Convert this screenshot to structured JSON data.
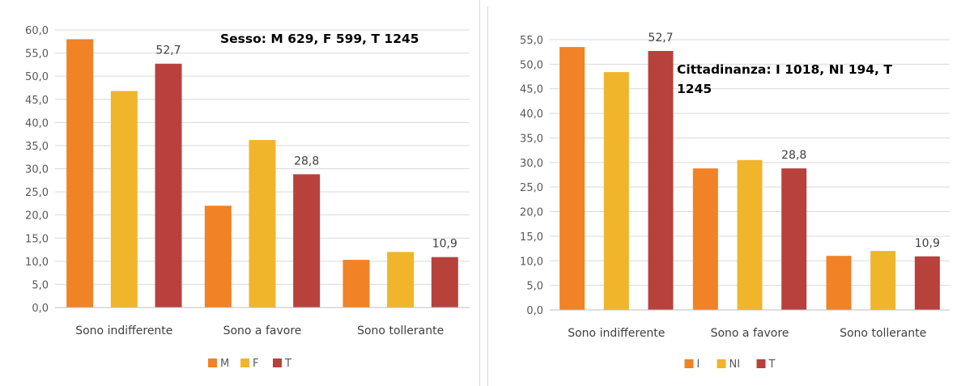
{
  "chart_data": [
    {
      "type": "bar",
      "title_lines": [
        "Sesso: M 629, F 599, T 1245"
      ],
      "categories": [
        "Sono indifferente",
        "Sono a favore",
        "Sono tollerante"
      ],
      "series": [
        {
          "name": "M",
          "color": "#f18226",
          "values": [
            58.0,
            22.0,
            10.3
          ]
        },
        {
          "name": "F",
          "color": "#f0b52a",
          "values": [
            46.8,
            36.2,
            12.0
          ]
        },
        {
          "name": "T",
          "color": "#b8413c",
          "values": [
            52.7,
            28.8,
            10.9
          ]
        }
      ],
      "data_labels": {
        "series": "T",
        "values": [
          "52,7",
          "28,8",
          "10,9"
        ]
      },
      "ylim": [
        0,
        60
      ],
      "yticks": [
        "0,0",
        "5,0",
        "10,0",
        "15,0",
        "20,0",
        "25,0",
        "30,0",
        "35,0",
        "40,0",
        "45,0",
        "50,0",
        "55,0",
        "60,0"
      ],
      "grid": true,
      "legend": "bottom"
    },
    {
      "type": "bar",
      "title_lines": [
        "Cittadinanza: I 1018, NI 194, T",
        "1245"
      ],
      "categories": [
        "Sono indifferente",
        "Sono a favore",
        "Sono tollerante"
      ],
      "series": [
        {
          "name": "I",
          "color": "#f18226",
          "values": [
            53.5,
            28.8,
            11.0
          ]
        },
        {
          "name": "NI",
          "color": "#f0b52a",
          "values": [
            48.4,
            30.5,
            12.0
          ]
        },
        {
          "name": "T",
          "color": "#b8413c",
          "values": [
            52.7,
            28.8,
            10.9
          ]
        }
      ],
      "data_labels": {
        "series": "T",
        "values": [
          "52,7",
          "28,8",
          "10,9"
        ]
      },
      "ylim": [
        0,
        55
      ],
      "yticks": [
        "0,0",
        "5,0",
        "10,0",
        "15,0",
        "20,0",
        "25,0",
        "30,0",
        "35,0",
        "40,0",
        "45,0",
        "50,0",
        "55,0"
      ],
      "grid": true,
      "legend": "bottom"
    }
  ]
}
